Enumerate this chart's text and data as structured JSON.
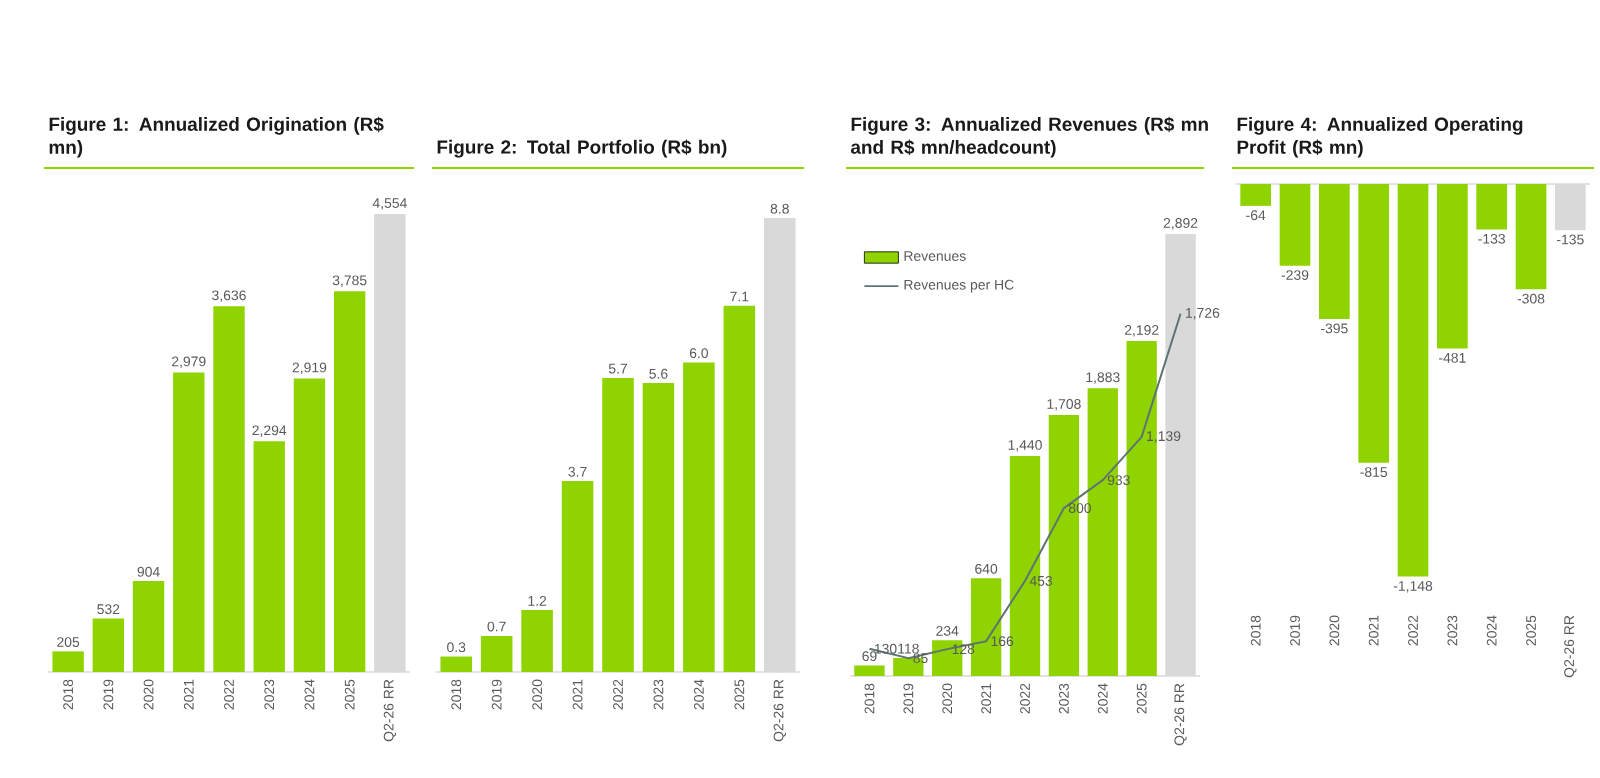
{
  "chart_data": [
    {
      "type": "bar",
      "title": "Figure 1: Annualized Origination (R$ mn)",
      "categories": [
        "2018",
        "2019",
        "2020",
        "2021",
        "2022",
        "2023",
        "2024",
        "2025",
        "Q2-26 RR"
      ],
      "values": [
        205,
        532,
        904,
        2979,
        3636,
        2294,
        2919,
        3785,
        4554
      ],
      "value_labels": [
        "205",
        "532",
        "904",
        "2,979",
        "3,636",
        "2,294",
        "2,919",
        "3,785",
        "4,554"
      ],
      "colors": [
        "#8fd400",
        "#8fd400",
        "#8fd400",
        "#8fd400",
        "#8fd400",
        "#8fd400",
        "#8fd400",
        "#8fd400",
        "#d9d9d9"
      ]
    },
    {
      "type": "bar",
      "title": "Figure 2: Total Portfolio (R$ bn)",
      "categories": [
        "2018",
        "2019",
        "2020",
        "2021",
        "2022",
        "2023",
        "2024",
        "2025",
        "Q2-26 RR"
      ],
      "values": [
        0.3,
        0.7,
        1.2,
        3.7,
        5.7,
        5.6,
        6.0,
        7.1,
        8.8
      ],
      "value_labels": [
        "0.3",
        "0.7",
        "1.2",
        "3.7",
        "5.7",
        "5.6",
        "6.0",
        "7.1",
        "8.8"
      ],
      "colors": [
        "#8fd400",
        "#8fd400",
        "#8fd400",
        "#8fd400",
        "#8fd400",
        "#8fd400",
        "#8fd400",
        "#8fd400",
        "#d9d9d9"
      ]
    },
    {
      "type": "bar",
      "title": "Figure 3: Annualized Revenues (R$ mn and R$ mn/headcount)",
      "categories": [
        "2018",
        "2019",
        "2020",
        "2021",
        "2022",
        "2023",
        "2024",
        "2025",
        "Q2-26 RR"
      ],
      "legend": "top left",
      "series": [
        {
          "name": "Revenues",
          "type": "bar",
          "color": "#8fd400",
          "colors": [
            "#8fd400",
            "#8fd400",
            "#8fd400",
            "#8fd400",
            "#8fd400",
            "#8fd400",
            "#8fd400",
            "#8fd400",
            "#d9d9d9"
          ],
          "values": [
            69,
            118,
            234,
            640,
            1440,
            1708,
            1883,
            2192,
            2892
          ],
          "value_labels": [
            "69",
            "118",
            "234",
            "640",
            "1,440",
            "1,708",
            "1,883",
            "2,192",
            "2,892"
          ]
        },
        {
          "name": "Revenues per HC",
          "type": "line",
          "axis": "y2",
          "color": "#5f7373",
          "values": [
            130,
            85,
            128,
            166,
            453,
            800,
            933,
            1139,
            1726
          ],
          "value_labels": [
            "130",
            "85",
            "128",
            "166",
            "453",
            "800",
            "933",
            "1,139",
            "1,726"
          ]
        }
      ]
    },
    {
      "type": "bar",
      "title": "Figure 4: Annualized Operating Profit (R$ mn)",
      "categories": [
        "2018",
        "2019",
        "2020",
        "2021",
        "2022",
        "2023",
        "2024",
        "2025",
        "Q2-26 RR"
      ],
      "values": [
        -64,
        -239,
        -395,
        -815,
        -1148,
        -481,
        -133,
        -308,
        -135
      ],
      "value_labels": [
        "-64",
        "-239",
        "-395",
        "-815",
        "-1,148",
        "-481",
        "-133",
        "-308",
        "-135"
      ],
      "colors": [
        "#8fd400",
        "#8fd400",
        "#8fd400",
        "#8fd400",
        "#8fd400",
        "#8fd400",
        "#8fd400",
        "#8fd400",
        "#d9d9d9"
      ]
    }
  ]
}
